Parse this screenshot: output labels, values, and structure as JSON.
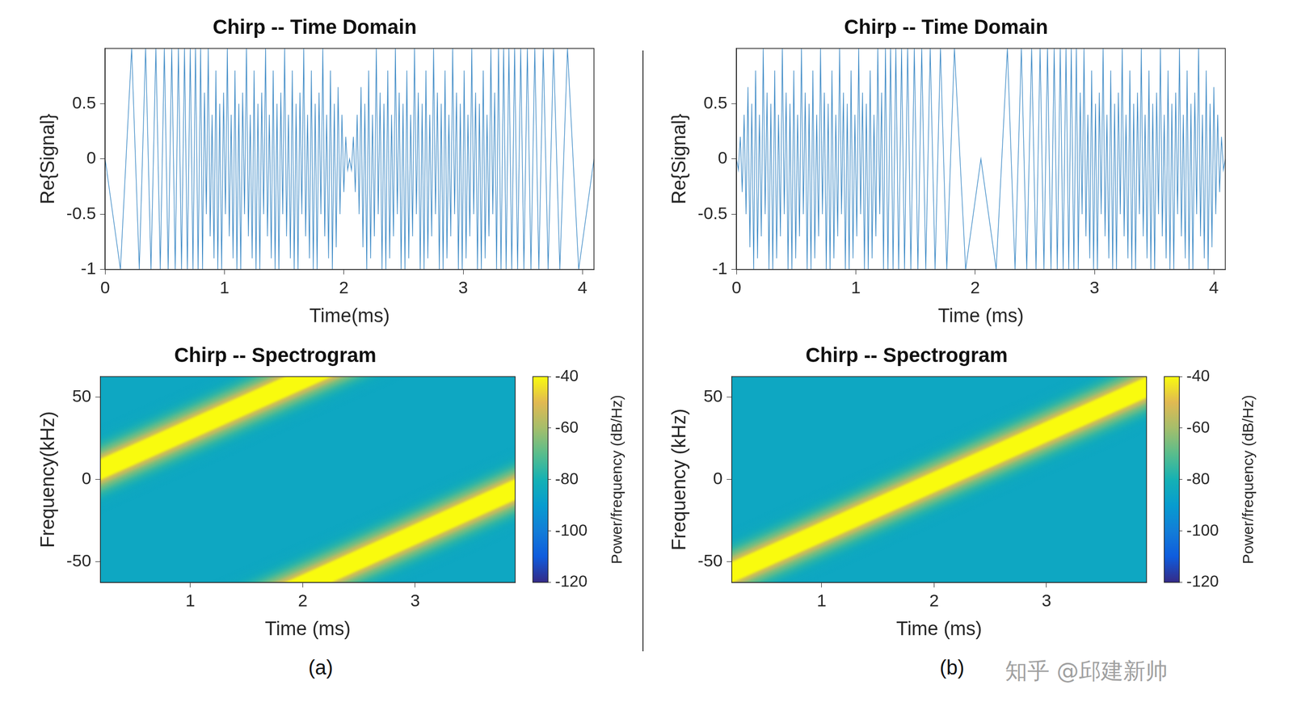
{
  "chart_data": [
    {
      "type": "line",
      "title": "Chirp -- Time Domain",
      "x_label": "Time(ms)",
      "y_label": "Re{Signal}",
      "color": "#3d8ac6",
      "grid": false,
      "xlim": [
        0,
        4.096
      ],
      "xticks": [
        0,
        1,
        2,
        3,
        4
      ],
      "ylim": [
        -1,
        1
      ],
      "yticks": [
        -1,
        -0.5,
        0,
        0.5
      ],
      "x": [
        0,
        0.128,
        0.222,
        0.286,
        0.339,
        0.384,
        0.425,
        0.462,
        0.496,
        0.528,
        0.558,
        0.587,
        0.614,
        0.64,
        0.665,
        0.689,
        0.713,
        0.736,
        0.757,
        0.779,
        0.8,
        0.816,
        0.832,
        0.848,
        0.864,
        0.88,
        0.896,
        0.912,
        0.928,
        0.944,
        0.96,
        0.976,
        0.992,
        1.008,
        1.024,
        1.04,
        1.056,
        1.072,
        1.088,
        1.104,
        1.12,
        1.136,
        1.152,
        1.168,
        1.184,
        1.2,
        1.216,
        1.232,
        1.248,
        1.264,
        1.28,
        1.296,
        1.312,
        1.328,
        1.344,
        1.36,
        1.376,
        1.392,
        1.408,
        1.424,
        1.44,
        1.456,
        1.472,
        1.488,
        1.504,
        1.52,
        1.536,
        1.552,
        1.568,
        1.584,
        1.6,
        1.616,
        1.632,
        1.648,
        1.664,
        1.68,
        1.696,
        1.712,
        1.728,
        1.744,
        1.76,
        1.776,
        1.792,
        1.808,
        1.824,
        1.84,
        1.856,
        1.872,
        1.888,
        1.904,
        1.92,
        1.936,
        1.952,
        1.968,
        1.984,
        2,
        2.016,
        2.032,
        2.048,
        2.064,
        2.08,
        2.096,
        2.112,
        2.128,
        2.144,
        2.16,
        2.176,
        2.192,
        2.208,
        2.224,
        2.24,
        2.256,
        2.272,
        2.288,
        2.304,
        2.32,
        2.336,
        2.352,
        2.368,
        2.384,
        2.4,
        2.416,
        2.432,
        2.448,
        2.464,
        2.48,
        2.496,
        2.512,
        2.528,
        2.544,
        2.56,
        2.576,
        2.592,
        2.608,
        2.624,
        2.64,
        2.656,
        2.672,
        2.688,
        2.704,
        2.72,
        2.736,
        2.752,
        2.768,
        2.784,
        2.8,
        2.816,
        2.832,
        2.848,
        2.864,
        2.88,
        2.896,
        2.912,
        2.928,
        2.944,
        2.96,
        2.976,
        2.992,
        3.008,
        3.024,
        3.04,
        3.056,
        3.072,
        3.088,
        3.104,
        3.12,
        3.136,
        3.152,
        3.168,
        3.184,
        3.2,
        3.216,
        3.232,
        3.248,
        3.264,
        3.28,
        3.296,
        3.317,
        3.339,
        3.36,
        3.383,
        3.407,
        3.431,
        3.456,
        3.482,
        3.509,
        3.538,
        3.568,
        3.6,
        3.634,
        3.671,
        3.712,
        3.757,
        3.81,
        3.874,
        3.968,
        4.096
      ],
      "values": [
        0,
        -1,
        1,
        -1,
        1,
        -1,
        1,
        -1,
        1,
        -1,
        1,
        -1,
        1,
        -1,
        1,
        -1,
        1,
        -1,
        1,
        -1,
        1,
        -1,
        0.6,
        -0.5,
        1,
        -0.7,
        0.4,
        -0.9,
        0.8,
        -1,
        0.5,
        -1,
        0.6,
        -0.5,
        1,
        -0.7,
        0.4,
        -0.9,
        0.8,
        -1,
        0.5,
        -1,
        0.6,
        -0.5,
        1,
        -0.7,
        0.4,
        -0.9,
        0.8,
        -1,
        0.5,
        -1,
        0.6,
        -0.5,
        1,
        -0.7,
        0.4,
        -0.9,
        0.8,
        -1,
        0.5,
        -1,
        0.6,
        -0.5,
        1,
        -0.7,
        0.4,
        -0.9,
        0.8,
        -1,
        0.5,
        -1,
        0.6,
        -0.5,
        1,
        -0.7,
        0.4,
        -0.9,
        0.8,
        -1,
        0.5,
        -1,
        0.6,
        -0.5,
        1,
        -0.7,
        0.4,
        -0.9,
        0.8,
        -1,
        0.5,
        -0.8,
        0.65,
        -0.5,
        0.4,
        -0.3,
        0.2,
        -0.1,
        0,
        -0.1,
        0.2,
        -0.3,
        0.4,
        -0.5,
        0.65,
        -0.8,
        0.5,
        -1,
        0.8,
        -0.9,
        0.4,
        -0.7,
        1,
        -0.5,
        0.6,
        -1,
        0.5,
        -1,
        0.8,
        -0.9,
        0.4,
        -0.7,
        1,
        -0.5,
        0.6,
        -1,
        0.5,
        -1,
        0.8,
        -0.9,
        0.4,
        -0.7,
        1,
        -0.5,
        0.6,
        -1,
        0.5,
        -1,
        0.8,
        -0.9,
        0.4,
        -0.7,
        1,
        -0.5,
        0.6,
        -1,
        0.5,
        -1,
        0.8,
        -0.9,
        0.4,
        -0.7,
        1,
        -0.5,
        0.6,
        -1,
        0.5,
        -1,
        0.8,
        -0.9,
        0.4,
        -0.7,
        1,
        -0.5,
        0.6,
        -1,
        0.5,
        -1,
        0.8,
        -0.9,
        0.4,
        -0.7,
        1,
        -0.5,
        0.6,
        -1,
        1,
        -1,
        1,
        -1,
        1,
        -1,
        1,
        -1,
        1,
        -1,
        1,
        -1,
        1,
        -1,
        1,
        -1,
        1,
        -1,
        1,
        -1,
        0
      ]
    },
    {
      "type": "spectrogram",
      "title": "Chirp -- Spectrogram",
      "x_label": "Time (ms)",
      "y_label": "Frequency(kHz)",
      "grid": false,
      "xlim": [
        0.2,
        3.89
      ],
      "xticks": [
        1,
        2,
        3
      ],
      "ylim": [
        -62.5,
        62.5
      ],
      "yticks": [
        -50,
        0,
        50
      ],
      "x": [
        0.2,
        2.05,
        2.05,
        2.05,
        3.89
      ],
      "values": [
        6.1,
        62.5,
        null,
        -62.5,
        -6.1
      ],
      "ridge_power": -40,
      "background_power": -85,
      "colorbar": {
        "label": "Power/frequency (dB/Hz)",
        "lim": [
          -120,
          -40
        ],
        "ticks": [
          -120,
          -100,
          -80,
          -60,
          -40
        ]
      }
    },
    {
      "type": "line",
      "title": "Chirp -- Time Domain",
      "x_label": "Time (ms)",
      "y_label": "Re{Signal}",
      "color": "#3d8ac6",
      "grid": false,
      "xlim": [
        0,
        4.096
      ],
      "xticks": [
        0,
        1,
        2,
        3,
        4
      ],
      "ylim": [
        -1,
        1
      ],
      "yticks": [
        -1,
        -0.5,
        0,
        0.5
      ],
      "x": [
        0,
        0.016,
        0.032,
        0.048,
        0.064,
        0.08,
        0.096,
        0.112,
        0.128,
        0.144,
        0.16,
        0.176,
        0.192,
        0.208,
        0.224,
        0.24,
        0.256,
        0.272,
        0.288,
        0.304,
        0.32,
        0.336,
        0.352,
        0.368,
        0.384,
        0.4,
        0.416,
        0.432,
        0.448,
        0.464,
        0.48,
        0.496,
        0.512,
        0.528,
        0.544,
        0.56,
        0.576,
        0.592,
        0.608,
        0.624,
        0.64,
        0.656,
        0.672,
        0.688,
        0.704,
        0.72,
        0.736,
        0.752,
        0.768,
        0.784,
        0.8,
        0.816,
        0.832,
        0.848,
        0.864,
        0.88,
        0.896,
        0.912,
        0.928,
        0.944,
        0.96,
        0.976,
        0.992,
        1.008,
        1.024,
        1.04,
        1.056,
        1.072,
        1.088,
        1.104,
        1.12,
        1.136,
        1.152,
        1.168,
        1.184,
        1.2,
        1.216,
        1.232,
        1.248,
        1.269,
        1.291,
        1.312,
        1.335,
        1.359,
        1.383,
        1.408,
        1.434,
        1.461,
        1.49,
        1.52,
        1.552,
        1.586,
        1.623,
        1.664,
        1.709,
        1.762,
        1.826,
        1.92,
        2.048,
        2.176,
        2.27,
        2.334,
        2.387,
        2.432,
        2.473,
        2.51,
        2.544,
        2.576,
        2.606,
        2.635,
        2.662,
        2.688,
        2.713,
        2.737,
        2.761,
        2.784,
        2.805,
        2.827,
        2.848,
        2.864,
        2.88,
        2.896,
        2.912,
        2.928,
        2.944,
        2.96,
        2.976,
        2.992,
        3.008,
        3.024,
        3.04,
        3.056,
        3.072,
        3.088,
        3.104,
        3.12,
        3.136,
        3.152,
        3.168,
        3.184,
        3.2,
        3.216,
        3.232,
        3.248,
        3.264,
        3.28,
        3.296,
        3.312,
        3.328,
        3.344,
        3.36,
        3.376,
        3.392,
        3.408,
        3.424,
        3.44,
        3.456,
        3.472,
        3.488,
        3.504,
        3.52,
        3.536,
        3.552,
        3.568,
        3.584,
        3.6,
        3.616,
        3.632,
        3.648,
        3.664,
        3.68,
        3.696,
        3.712,
        3.728,
        3.744,
        3.76,
        3.776,
        3.792,
        3.808,
        3.824,
        3.84,
        3.856,
        3.872,
        3.888,
        3.904,
        3.92,
        3.936,
        3.952,
        3.968,
        3.984,
        4,
        4.016,
        4.032,
        4.048,
        4.064,
        4.08,
        4.096
      ],
      "values": [
        0,
        -0.1,
        0.2,
        -0.3,
        0.4,
        -0.5,
        0.65,
        -0.8,
        0.5,
        -1,
        0.8,
        -0.9,
        0.4,
        -0.7,
        1,
        -0.5,
        0.6,
        -1,
        0.5,
        -1,
        0.8,
        -0.9,
        0.4,
        -0.7,
        1,
        -0.5,
        0.6,
        -1,
        0.5,
        -1,
        0.8,
        -0.9,
        0.4,
        -0.7,
        1,
        -0.5,
        0.6,
        -1,
        0.5,
        -1,
        0.8,
        -0.9,
        0.4,
        -0.7,
        1,
        -0.5,
        0.6,
        -1,
        0.5,
        -1,
        0.8,
        -0.9,
        0.4,
        -0.7,
        1,
        -0.5,
        0.6,
        -1,
        0.5,
        -1,
        0.8,
        -0.9,
        0.4,
        -0.7,
        1,
        -0.5,
        0.6,
        -1,
        0.5,
        -1,
        0.8,
        -0.9,
        0.4,
        -0.7,
        1,
        -0.5,
        0.6,
        -1,
        1,
        -1,
        1,
        -1,
        1,
        -1,
        1,
        -1,
        1,
        -1,
        1,
        -1,
        1,
        -1,
        1,
        -1,
        1,
        -1,
        1,
        -1,
        0,
        -1,
        1,
        -1,
        1,
        -1,
        1,
        -1,
        1,
        -1,
        1,
        -1,
        1,
        -1,
        1,
        -1,
        1,
        -1,
        1,
        -1,
        1,
        -1,
        0.6,
        -0.5,
        1,
        -0.7,
        0.4,
        -0.9,
        0.8,
        -1,
        0.5,
        -1,
        0.6,
        -0.5,
        1,
        -0.7,
        0.4,
        -0.9,
        0.8,
        -1,
        0.5,
        -1,
        0.6,
        -0.5,
        1,
        -0.7,
        0.4,
        -0.9,
        0.8,
        -1,
        0.5,
        -1,
        0.6,
        -0.5,
        1,
        -0.7,
        0.4,
        -0.9,
        0.8,
        -1,
        0.5,
        -1,
        0.6,
        -0.5,
        1,
        -0.7,
        0.4,
        -0.9,
        0.8,
        -1,
        0.5,
        -1,
        0.6,
        -0.5,
        1,
        -0.7,
        0.4,
        -0.9,
        0.8,
        -1,
        0.5,
        -1,
        0.6,
        -0.5,
        1,
        -0.7,
        0.4,
        -0.9,
        0.8,
        -1,
        0.5,
        -0.8,
        0.65,
        -0.5,
        0.4,
        -0.3,
        0.2,
        -0.1,
        0
      ]
    },
    {
      "type": "spectrogram",
      "title": "Chirp -- Spectrogram",
      "x_label": "Time (ms)",
      "y_label": "Frequency (kHz)",
      "grid": false,
      "xlim": [
        0.2,
        3.89
      ],
      "xticks": [
        1,
        2,
        3
      ],
      "ylim": [
        -62.5,
        62.5
      ],
      "yticks": [
        -50,
        0,
        50
      ],
      "x": [
        0.2,
        3.89
      ],
      "values": [
        -56.4,
        56.0
      ],
      "ridge_power": -40,
      "background_power": -85,
      "colorbar": {
        "label": "Power/frequency (dB/Hz)",
        "lim": [
          -120,
          -40
        ],
        "ticks": [
          -120,
          -100,
          -80,
          -60,
          -40
        ]
      }
    }
  ],
  "panel_labels": [
    "(a)",
    "(b)"
  ],
  "watermark": "知乎 @邱建新帅"
}
